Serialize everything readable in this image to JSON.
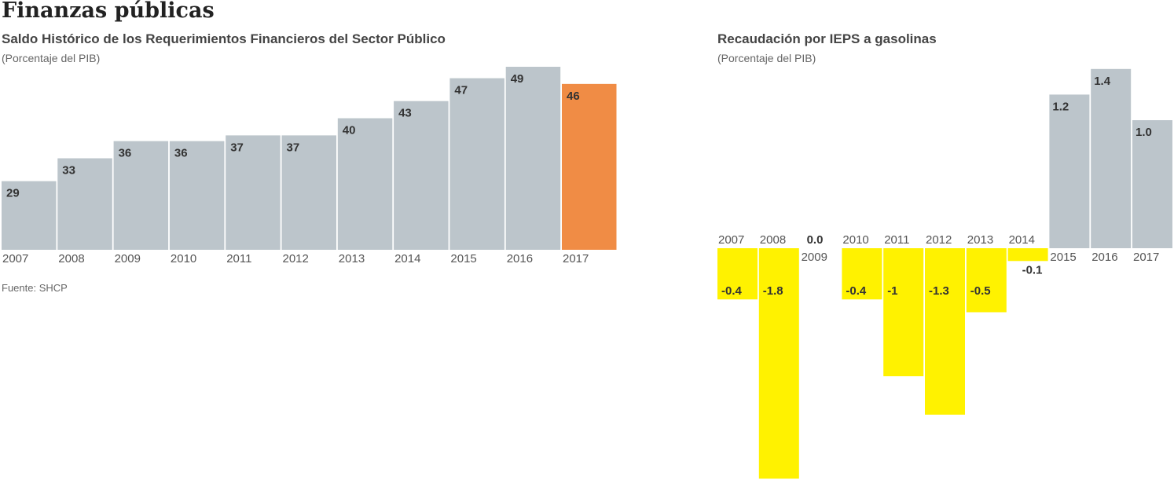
{
  "title": "Finanzas públicas",
  "source": "Fuente: SHCP",
  "chart_data": [
    {
      "type": "bar",
      "title": "Saldo Histórico de los Requerimientos Financieros del Sector Público",
      "ylabel": "(Porcentaje del PIB)",
      "categories": [
        "2007",
        "2008",
        "2009",
        "2010",
        "2011",
        "2012",
        "2013",
        "2014",
        "2015",
        "2016",
        "2017"
      ],
      "values": [
        29,
        33,
        36,
        36,
        37,
        37,
        40,
        43,
        47,
        49,
        46
      ],
      "value_labels": [
        "29",
        "33",
        "36",
        "36",
        "37",
        "37",
        "40",
        "43",
        "47",
        "49",
        "46"
      ],
      "ylim": [
        17,
        49
      ],
      "colors": {
        "default": "#bcc5cb",
        "highlight": "#f08c45"
      },
      "highlight_category": "2017",
      "grid": false
    },
    {
      "type": "bar",
      "title": "Recaudación por IEPS a gasolinas",
      "ylabel": "(Porcentaje del PIB)",
      "categories": [
        "2007",
        "2008",
        "2009",
        "2010",
        "2011",
        "2012",
        "2013",
        "2014",
        "2015",
        "2016",
        "2017"
      ],
      "values": [
        -0.4,
        -1.8,
        0.0,
        -0.4,
        -1,
        -1.3,
        -0.5,
        -0.1,
        1.2,
        1.4,
        1.0
      ],
      "value_labels": [
        "-0.4",
        "-1.8",
        "0.0",
        "-0.4",
        "-1",
        "-1.3",
        "-0.5",
        "-0.1",
        "1.2",
        "1.4",
        "1.0"
      ],
      "ylim": [
        -1.8,
        1.4
      ],
      "colors": {
        "positive": "#bcc5cb",
        "negative": "#fff200"
      },
      "grid": false
    }
  ]
}
